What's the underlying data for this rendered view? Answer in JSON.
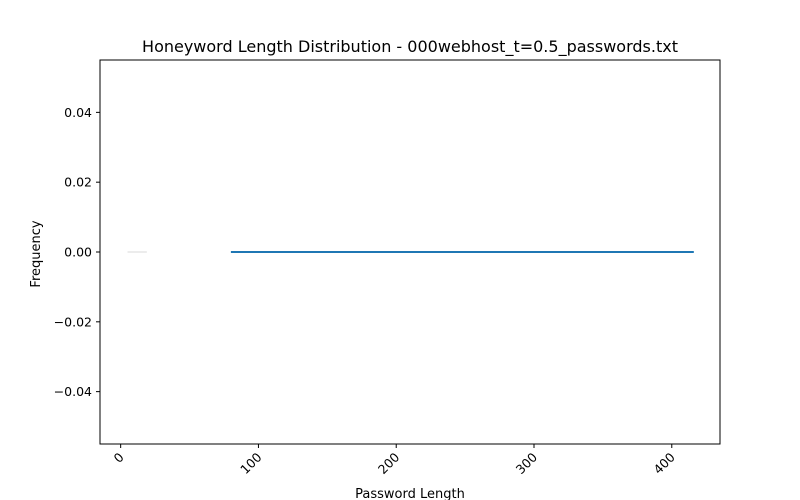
{
  "chart_data": {
    "type": "line",
    "title": "Honeyword Length Distribution - 000webhost_t=0.5_passwords.txt",
    "xlabel": "Password Length",
    "ylabel": "Frequency",
    "xlim": [
      -15,
      435
    ],
    "ylim": [
      -0.055,
      0.055
    ],
    "xticks": [
      0,
      100,
      200,
      300,
      400
    ],
    "yticks": [
      -0.04,
      -0.02,
      0.0,
      0.02,
      0.04
    ],
    "xtick_labels": [
      "0",
      "100",
      "200",
      "300",
      "400"
    ],
    "ytick_labels": [
      "−0.04",
      "−0.02",
      "0.00",
      "0.02",
      "0.04"
    ],
    "grid": false,
    "series": [
      {
        "color": "#1f77b4",
        "x": [
          80,
          416
        ],
        "y": [
          0.0,
          0.0
        ]
      }
    ],
    "faint_segment": {
      "color": "#e6e6e6",
      "x": [
        5,
        19
      ],
      "y": [
        0.0,
        0.0
      ]
    }
  }
}
